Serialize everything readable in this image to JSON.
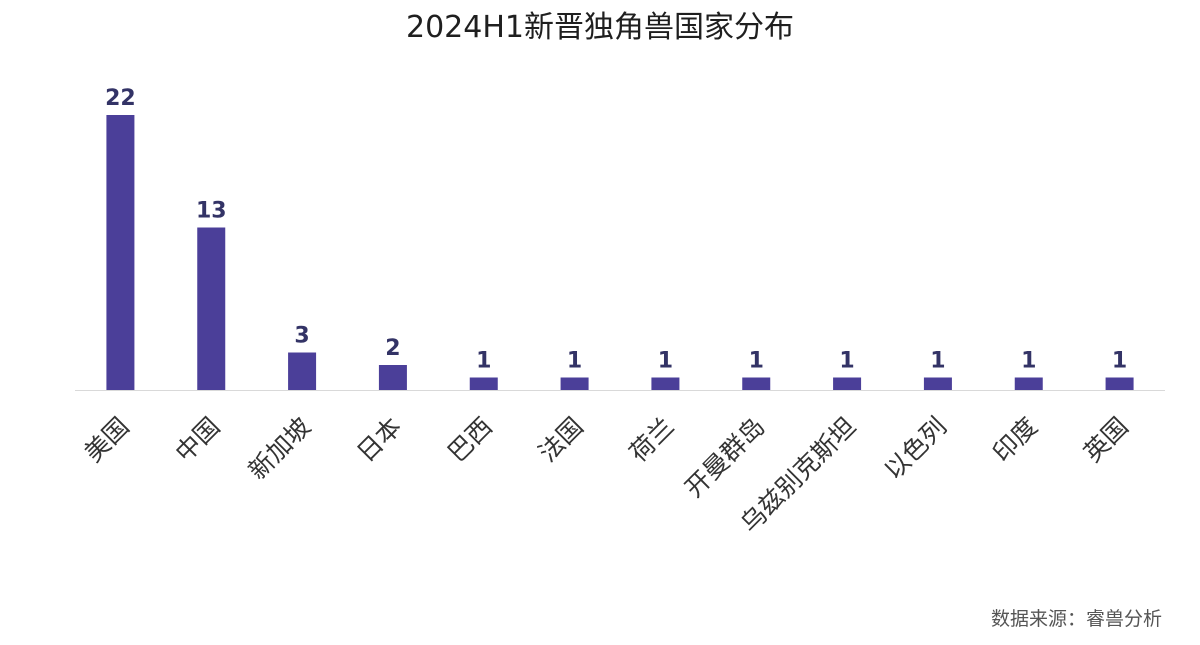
{
  "chart_data": {
    "type": "bar",
    "title": "2024H1新晋独角兽国家分布",
    "categories": [
      "美国",
      "中国",
      "新加坡",
      "日本",
      "巴西",
      "法国",
      "荷兰",
      "开曼群岛",
      "乌兹别克斯坦",
      "以色列",
      "印度",
      "英国"
    ],
    "values": [
      22,
      13,
      3,
      2,
      1,
      1,
      1,
      1,
      1,
      1,
      1,
      1
    ],
    "value_labels": [
      "22",
      "13",
      "3",
      "2",
      "1",
      "1",
      "1",
      "1",
      "1",
      "1",
      "1",
      "1"
    ],
    "xlabel": "",
    "ylabel": "",
    "ylim": [
      0,
      22
    ],
    "grid": false,
    "legend": "none",
    "bar_color": "#4b3f99",
    "baseline_color": "#d9d9d9",
    "label_color": "#333366"
  },
  "source": "数据来源：睿兽分析"
}
